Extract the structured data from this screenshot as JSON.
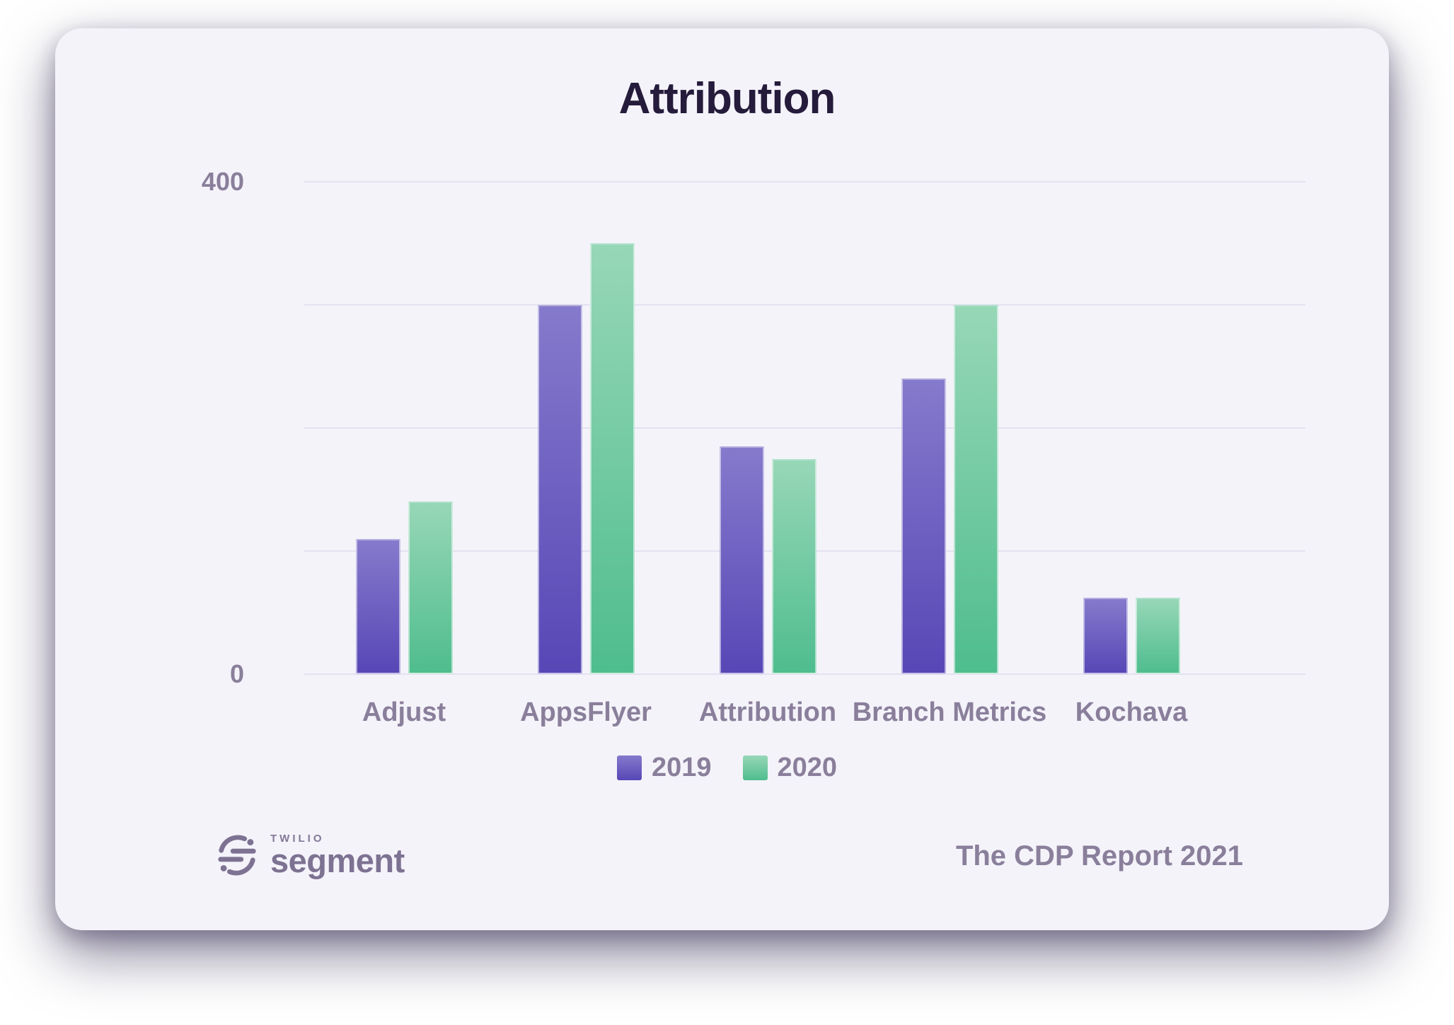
{
  "title": "Attribution",
  "chart_data": {
    "type": "bar",
    "title": "Attribution",
    "categories": [
      "Adjust",
      "AppsFlyer",
      "Attribution",
      "Branch Metrics",
      "Kochava"
    ],
    "series": [
      {
        "name": "2019",
        "values": [
          110,
          300,
          185,
          240,
          62
        ],
        "color_top": "#857acc",
        "color_bottom": "#5747b6"
      },
      {
        "name": "2020",
        "values": [
          140,
          350,
          175,
          300,
          62
        ],
        "color_top": "#97d7b7",
        "color_bottom": "#4fbd8e"
      }
    ],
    "xlabel": "",
    "ylabel": "",
    "ylim": [
      0,
      400
    ],
    "gridline_step": 100,
    "grid": "horizontal",
    "ytick_labels": [
      {
        "value": 400,
        "label": "400"
      },
      {
        "value": 0,
        "label": "0"
      }
    ],
    "legend_position": "bottom-center"
  },
  "footer": {
    "brand_small": "TWILIO",
    "brand_name": "segment",
    "report_title": "The CDP Report 2021"
  },
  "colors": {
    "card_background": "#f4f3fa",
    "title_text": "#251b3b",
    "axis_text": "#8a7f9b",
    "gridline": "#e4e1f1",
    "series_2019": "#6b5bc4",
    "series_2020": "#62c89b"
  }
}
